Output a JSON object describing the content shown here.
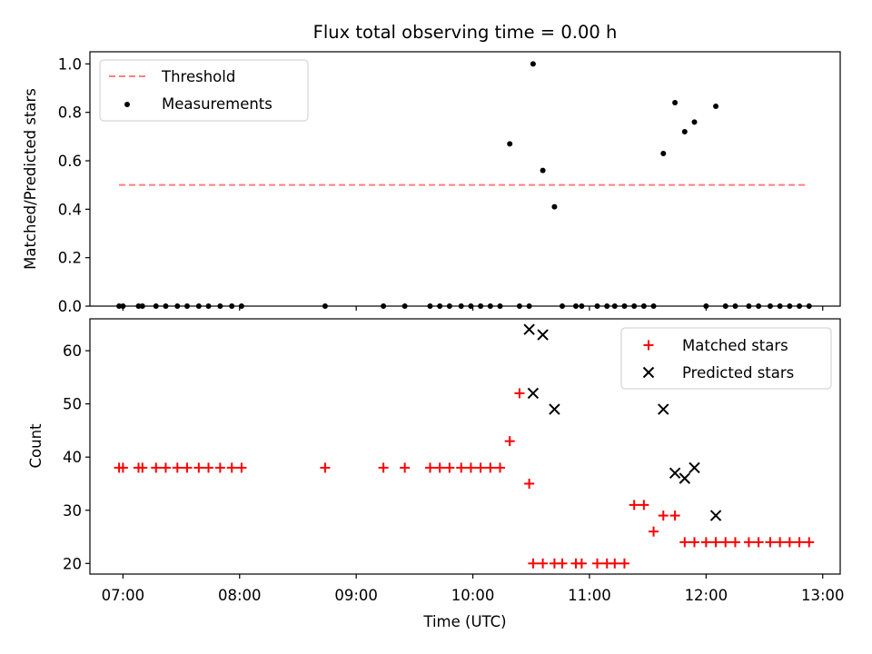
{
  "chart_data": [
    {
      "type": "scatter",
      "title": "Flux total observing time = 0.00 h",
      "xlabel": "",
      "ylabel": "Matched/Predicted stars",
      "xlim": [
        "06:43",
        "13:09"
      ],
      "ylim": [
        0,
        1.05
      ],
      "yticks": [
        "0.0",
        "0.2",
        "0.4",
        "0.6",
        "0.8",
        "1.0"
      ],
      "legend_position": "top-left",
      "grid": false,
      "series": [
        {
          "name": "Threshold",
          "style": "dashed-line",
          "color": "#ff7f7f",
          "x": [
            "06:58",
            "12:52"
          ],
          "y": [
            0.5,
            0.5
          ]
        },
        {
          "name": "Measurements",
          "style": "dot",
          "color": "#000000",
          "x": [
            "06:58",
            "07:00",
            "07:08",
            "07:10",
            "07:17",
            "07:22",
            "07:28",
            "07:33",
            "07:39",
            "07:44",
            "07:50",
            "07:56",
            "08:01",
            "08:44",
            "09:14",
            "09:25",
            "09:38",
            "09:43",
            "09:48",
            "09:54",
            "09:59",
            "10:04",
            "10:09",
            "10:14",
            "10:19",
            "10:24",
            "10:29",
            "10:31",
            "10:36",
            "10:42",
            "10:46",
            "10:53",
            "10:56",
            "11:04",
            "11:09",
            "11:13",
            "11:18",
            "11:23",
            "11:28",
            "11:33",
            "11:38",
            "11:44",
            "11:49",
            "11:54",
            "12:00",
            "12:05",
            "12:10",
            "12:15",
            "12:22",
            "12:27",
            "12:33",
            "12:38",
            "12:43",
            "12:48",
            "12:53"
          ],
          "y": [
            0,
            0,
            0,
            0,
            0,
            0,
            0,
            0,
            0,
            0,
            0,
            0,
            0,
            0,
            0,
            0,
            0,
            0,
            0,
            0,
            0,
            0,
            0,
            0,
            0.67,
            0,
            0,
            1.0,
            0.56,
            0.41,
            0,
            0,
            0,
            0,
            0,
            0,
            0,
            0,
            0,
            0,
            0.63,
            0.84,
            0.72,
            0.76,
            0,
            0.825,
            0,
            0,
            0,
            0,
            0,
            0,
            0,
            0,
            0
          ]
        }
      ]
    },
    {
      "type": "scatter",
      "title": "",
      "xlabel": "Time (UTC)",
      "ylabel": "Count",
      "xlim": [
        "06:43",
        "13:09"
      ],
      "ylim": [
        18,
        66
      ],
      "xticks": [
        "07:00",
        "08:00",
        "09:00",
        "10:00",
        "11:00",
        "12:00",
        "13:00"
      ],
      "yticks": [
        "20",
        "30",
        "40",
        "50",
        "60"
      ],
      "legend_position": "top-right",
      "grid": false,
      "series": [
        {
          "name": "Matched stars",
          "marker": "plus",
          "color": "#ff0000",
          "x": [
            "06:58",
            "07:00",
            "07:08",
            "07:10",
            "07:17",
            "07:22",
            "07:28",
            "07:33",
            "07:39",
            "07:44",
            "07:50",
            "07:56",
            "08:01",
            "08:44",
            "09:14",
            "09:25",
            "09:38",
            "09:43",
            "09:48",
            "09:54",
            "09:59",
            "10:04",
            "10:09",
            "10:14",
            "10:19",
            "10:24",
            "10:29",
            "10:31",
            "10:36",
            "10:42",
            "10:46",
            "10:53",
            "10:56",
            "11:04",
            "11:09",
            "11:13",
            "11:18",
            "11:23",
            "11:28",
            "11:33",
            "11:38",
            "11:44",
            "11:49",
            "11:54",
            "12:00",
            "12:05",
            "12:10",
            "12:15",
            "12:22",
            "12:27",
            "12:33",
            "12:38",
            "12:43",
            "12:48",
            "12:53"
          ],
          "y": [
            38,
            38,
            38,
            38,
            38,
            38,
            38,
            38,
            38,
            38,
            38,
            38,
            38,
            38,
            38,
            38,
            38,
            38,
            38,
            38,
            38,
            38,
            38,
            38,
            43,
            52,
            35,
            20,
            20,
            20,
            20,
            20,
            20,
            20,
            20,
            20,
            20,
            31,
            31,
            26,
            29,
            29,
            24,
            24,
            24,
            24,
            24,
            24,
            24,
            24,
            24,
            24,
            24,
            24,
            24
          ]
        },
        {
          "name": "Predicted stars",
          "marker": "x",
          "color": "#000000",
          "x": [
            "10:29",
            "10:31",
            "10:36",
            "10:42",
            "11:38",
            "11:44",
            "11:49",
            "11:54",
            "12:05"
          ],
          "y": [
            64,
            52,
            63,
            49,
            49,
            37,
            36,
            38,
            29
          ]
        }
      ]
    }
  ]
}
